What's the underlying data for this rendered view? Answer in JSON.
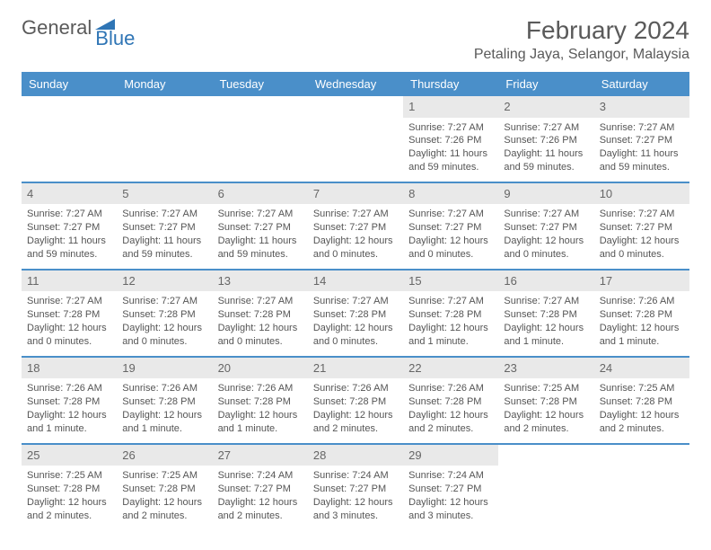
{
  "logo": {
    "text1": "General",
    "text2": "Blue",
    "shape_color": "#2f75b5"
  },
  "title": "February 2024",
  "location": "Petaling Jaya, Selangor, Malaysia",
  "columns": [
    "Sunday",
    "Monday",
    "Tuesday",
    "Wednesday",
    "Thursday",
    "Friday",
    "Saturday"
  ],
  "colors": {
    "header_bg": "#4a8fc9",
    "header_text": "#ffffff",
    "daynum_bg": "#e9e9e9",
    "row_border": "#4a8fc9",
    "text": "#555555"
  },
  "weeks": [
    [
      {
        "day": "",
        "sunrise": "",
        "sunset": "",
        "daylight": ""
      },
      {
        "day": "",
        "sunrise": "",
        "sunset": "",
        "daylight": ""
      },
      {
        "day": "",
        "sunrise": "",
        "sunset": "",
        "daylight": ""
      },
      {
        "day": "",
        "sunrise": "",
        "sunset": "",
        "daylight": ""
      },
      {
        "day": "1",
        "sunrise": "Sunrise: 7:27 AM",
        "sunset": "Sunset: 7:26 PM",
        "daylight": "Daylight: 11 hours and 59 minutes."
      },
      {
        "day": "2",
        "sunrise": "Sunrise: 7:27 AM",
        "sunset": "Sunset: 7:26 PM",
        "daylight": "Daylight: 11 hours and 59 minutes."
      },
      {
        "day": "3",
        "sunrise": "Sunrise: 7:27 AM",
        "sunset": "Sunset: 7:27 PM",
        "daylight": "Daylight: 11 hours and 59 minutes."
      }
    ],
    [
      {
        "day": "4",
        "sunrise": "Sunrise: 7:27 AM",
        "sunset": "Sunset: 7:27 PM",
        "daylight": "Daylight: 11 hours and 59 minutes."
      },
      {
        "day": "5",
        "sunrise": "Sunrise: 7:27 AM",
        "sunset": "Sunset: 7:27 PM",
        "daylight": "Daylight: 11 hours and 59 minutes."
      },
      {
        "day": "6",
        "sunrise": "Sunrise: 7:27 AM",
        "sunset": "Sunset: 7:27 PM",
        "daylight": "Daylight: 11 hours and 59 minutes."
      },
      {
        "day": "7",
        "sunrise": "Sunrise: 7:27 AM",
        "sunset": "Sunset: 7:27 PM",
        "daylight": "Daylight: 12 hours and 0 minutes."
      },
      {
        "day": "8",
        "sunrise": "Sunrise: 7:27 AM",
        "sunset": "Sunset: 7:27 PM",
        "daylight": "Daylight: 12 hours and 0 minutes."
      },
      {
        "day": "9",
        "sunrise": "Sunrise: 7:27 AM",
        "sunset": "Sunset: 7:27 PM",
        "daylight": "Daylight: 12 hours and 0 minutes."
      },
      {
        "day": "10",
        "sunrise": "Sunrise: 7:27 AM",
        "sunset": "Sunset: 7:27 PM",
        "daylight": "Daylight: 12 hours and 0 minutes."
      }
    ],
    [
      {
        "day": "11",
        "sunrise": "Sunrise: 7:27 AM",
        "sunset": "Sunset: 7:28 PM",
        "daylight": "Daylight: 12 hours and 0 minutes."
      },
      {
        "day": "12",
        "sunrise": "Sunrise: 7:27 AM",
        "sunset": "Sunset: 7:28 PM",
        "daylight": "Daylight: 12 hours and 0 minutes."
      },
      {
        "day": "13",
        "sunrise": "Sunrise: 7:27 AM",
        "sunset": "Sunset: 7:28 PM",
        "daylight": "Daylight: 12 hours and 0 minutes."
      },
      {
        "day": "14",
        "sunrise": "Sunrise: 7:27 AM",
        "sunset": "Sunset: 7:28 PM",
        "daylight": "Daylight: 12 hours and 0 minutes."
      },
      {
        "day": "15",
        "sunrise": "Sunrise: 7:27 AM",
        "sunset": "Sunset: 7:28 PM",
        "daylight": "Daylight: 12 hours and 1 minute."
      },
      {
        "day": "16",
        "sunrise": "Sunrise: 7:27 AM",
        "sunset": "Sunset: 7:28 PM",
        "daylight": "Daylight: 12 hours and 1 minute."
      },
      {
        "day": "17",
        "sunrise": "Sunrise: 7:26 AM",
        "sunset": "Sunset: 7:28 PM",
        "daylight": "Daylight: 12 hours and 1 minute."
      }
    ],
    [
      {
        "day": "18",
        "sunrise": "Sunrise: 7:26 AM",
        "sunset": "Sunset: 7:28 PM",
        "daylight": "Daylight: 12 hours and 1 minute."
      },
      {
        "day": "19",
        "sunrise": "Sunrise: 7:26 AM",
        "sunset": "Sunset: 7:28 PM",
        "daylight": "Daylight: 12 hours and 1 minute."
      },
      {
        "day": "20",
        "sunrise": "Sunrise: 7:26 AM",
        "sunset": "Sunset: 7:28 PM",
        "daylight": "Daylight: 12 hours and 1 minute."
      },
      {
        "day": "21",
        "sunrise": "Sunrise: 7:26 AM",
        "sunset": "Sunset: 7:28 PM",
        "daylight": "Daylight: 12 hours and 2 minutes."
      },
      {
        "day": "22",
        "sunrise": "Sunrise: 7:26 AM",
        "sunset": "Sunset: 7:28 PM",
        "daylight": "Daylight: 12 hours and 2 minutes."
      },
      {
        "day": "23",
        "sunrise": "Sunrise: 7:25 AM",
        "sunset": "Sunset: 7:28 PM",
        "daylight": "Daylight: 12 hours and 2 minutes."
      },
      {
        "day": "24",
        "sunrise": "Sunrise: 7:25 AM",
        "sunset": "Sunset: 7:28 PM",
        "daylight": "Daylight: 12 hours and 2 minutes."
      }
    ],
    [
      {
        "day": "25",
        "sunrise": "Sunrise: 7:25 AM",
        "sunset": "Sunset: 7:28 PM",
        "daylight": "Daylight: 12 hours and 2 minutes."
      },
      {
        "day": "26",
        "sunrise": "Sunrise: 7:25 AM",
        "sunset": "Sunset: 7:28 PM",
        "daylight": "Daylight: 12 hours and 2 minutes."
      },
      {
        "day": "27",
        "sunrise": "Sunrise: 7:24 AM",
        "sunset": "Sunset: 7:27 PM",
        "daylight": "Daylight: 12 hours and 2 minutes."
      },
      {
        "day": "28",
        "sunrise": "Sunrise: 7:24 AM",
        "sunset": "Sunset: 7:27 PM",
        "daylight": "Daylight: 12 hours and 3 minutes."
      },
      {
        "day": "29",
        "sunrise": "Sunrise: 7:24 AM",
        "sunset": "Sunset: 7:27 PM",
        "daylight": "Daylight: 12 hours and 3 minutes."
      },
      {
        "day": "",
        "sunrise": "",
        "sunset": "",
        "daylight": ""
      },
      {
        "day": "",
        "sunrise": "",
        "sunset": "",
        "daylight": ""
      }
    ]
  ]
}
